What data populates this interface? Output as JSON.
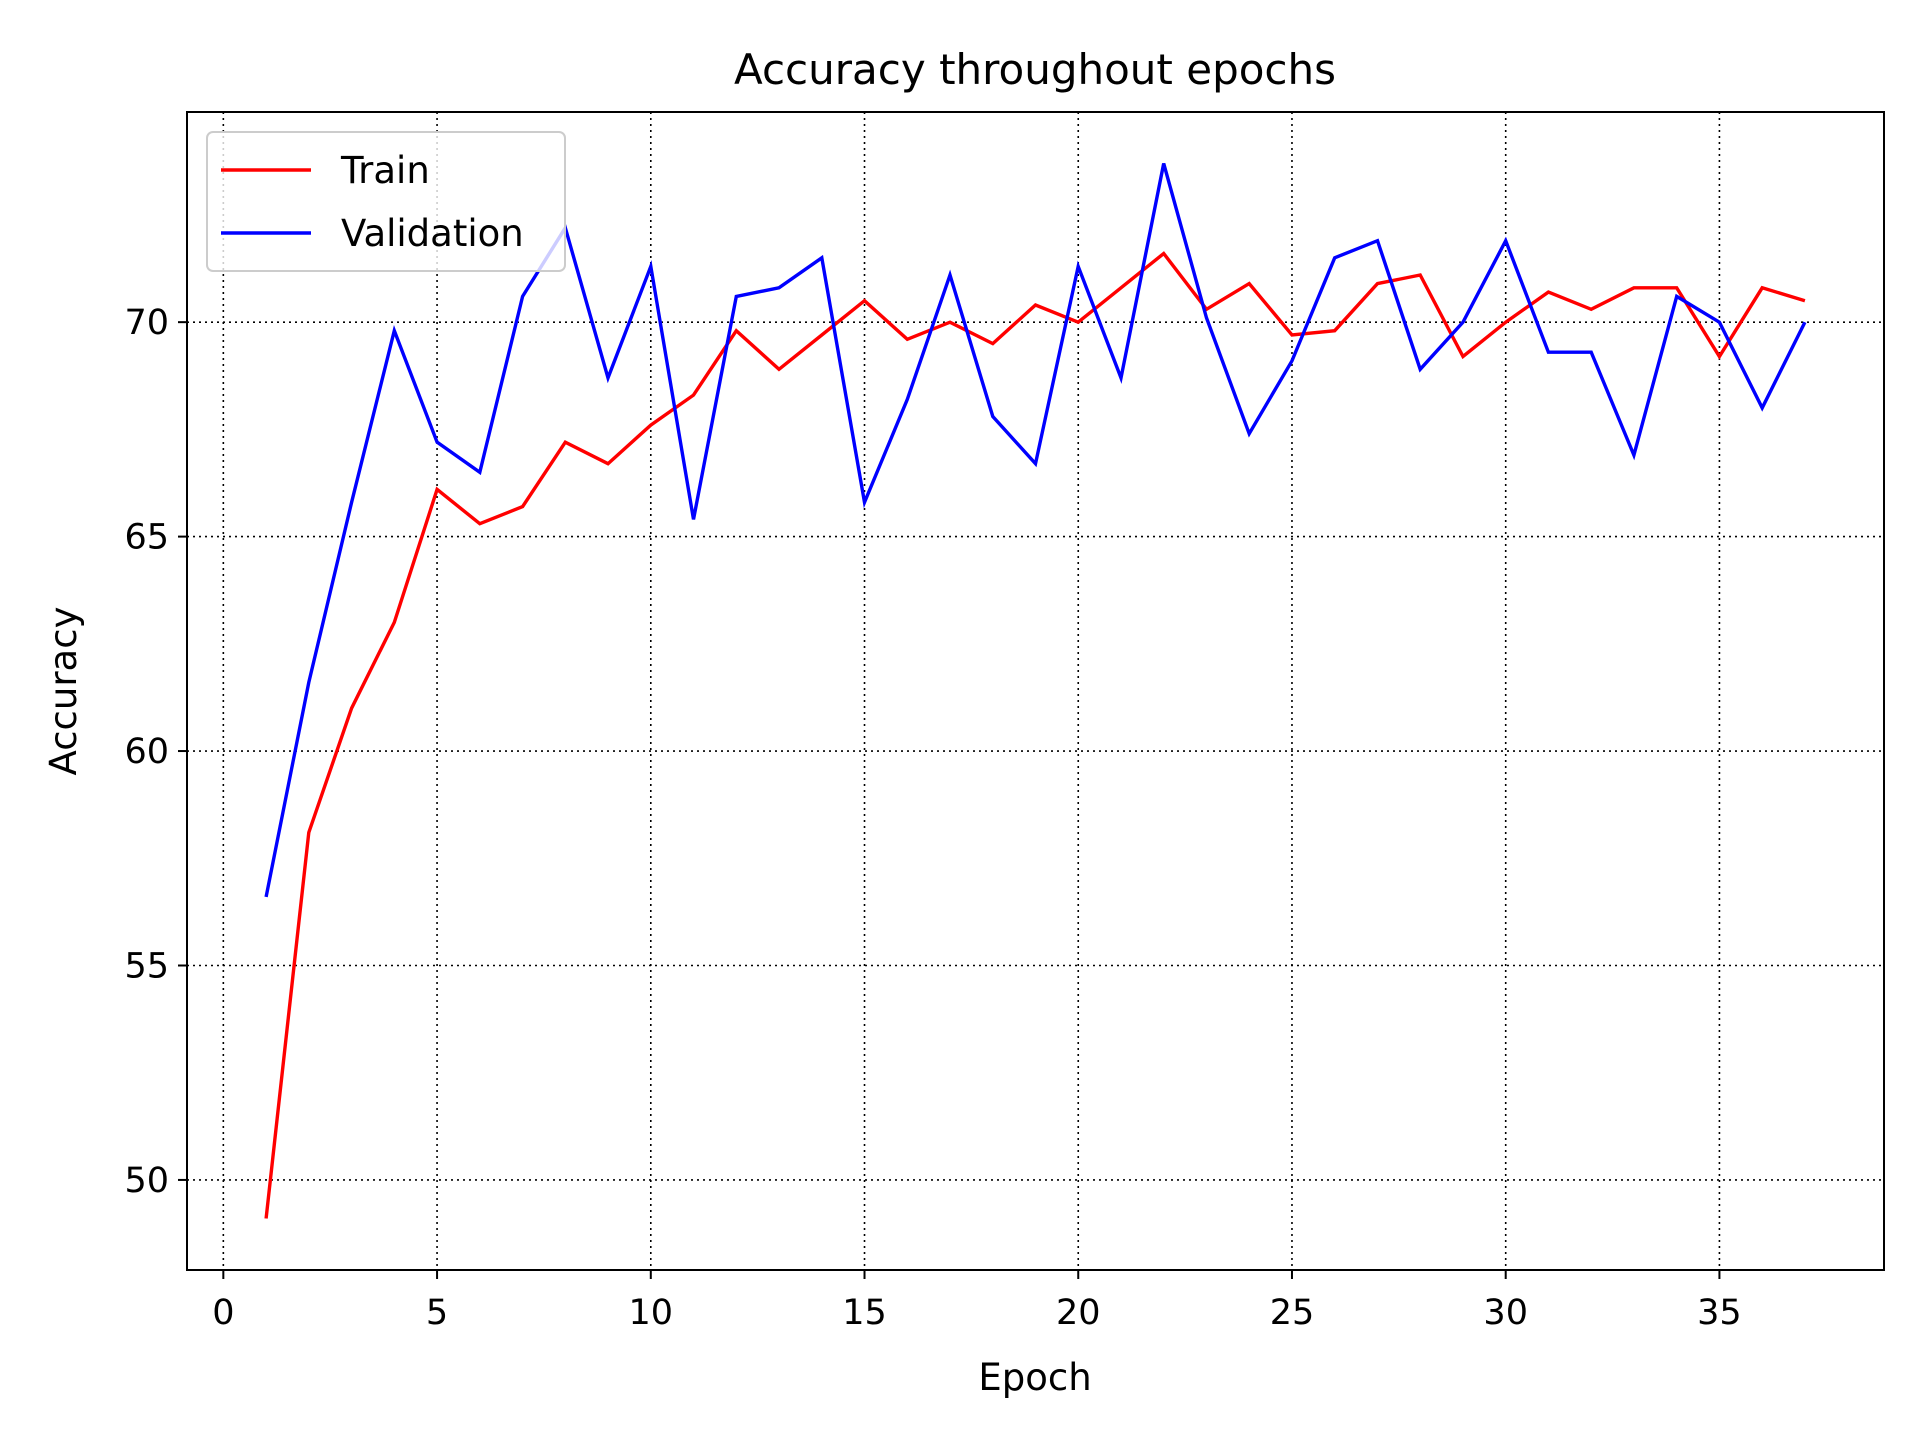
{
  "chart_data": {
    "type": "line",
    "title": "Accuracy throughout epochs",
    "xlabel": "Epoch",
    "ylabel": "Accuracy",
    "xlim": [
      -0.85,
      38.85
    ],
    "ylim": [
      47.9,
      74.9
    ],
    "xticks": [
      0,
      5,
      10,
      15,
      20,
      25,
      30,
      35
    ],
    "yticks": [
      50,
      55,
      60,
      65,
      70
    ],
    "grid": true,
    "legend_position": "upper-left",
    "x": [
      1,
      2,
      3,
      4,
      5,
      6,
      7,
      8,
      9,
      10,
      11,
      12,
      13,
      14,
      15,
      16,
      17,
      18,
      19,
      20,
      21,
      22,
      23,
      24,
      25,
      26,
      27,
      28,
      29,
      30,
      31,
      32,
      33,
      34,
      35,
      36,
      37
    ],
    "series": [
      {
        "name": "Train",
        "color": "#ff0000",
        "values": [
          49.1,
          58.1,
          61.0,
          63.0,
          66.1,
          65.3,
          65.7,
          67.2,
          66.7,
          67.6,
          68.3,
          69.8,
          68.9,
          69.7,
          70.5,
          69.6,
          70.0,
          69.5,
          70.4,
          70.0,
          70.8,
          71.6,
          70.3,
          70.9,
          69.7,
          69.8,
          70.9,
          71.1,
          69.2,
          70.0,
          70.7,
          70.3,
          70.8,
          70.8,
          69.2,
          70.8,
          70.5
        ]
      },
      {
        "name": "Validation",
        "color": "#0000ff",
        "values": [
          56.6,
          61.6,
          65.8,
          69.8,
          67.2,
          66.5,
          70.6,
          72.2,
          68.7,
          71.3,
          65.4,
          70.6,
          70.8,
          71.5,
          65.8,
          68.2,
          71.1,
          67.8,
          66.7,
          71.3,
          68.7,
          73.7,
          70.1,
          67.4,
          69.1,
          71.5,
          71.9,
          68.9,
          70.0,
          71.9,
          69.3,
          69.3,
          66.9,
          70.6,
          70.0,
          68.0,
          70.0
        ]
      }
    ]
  }
}
